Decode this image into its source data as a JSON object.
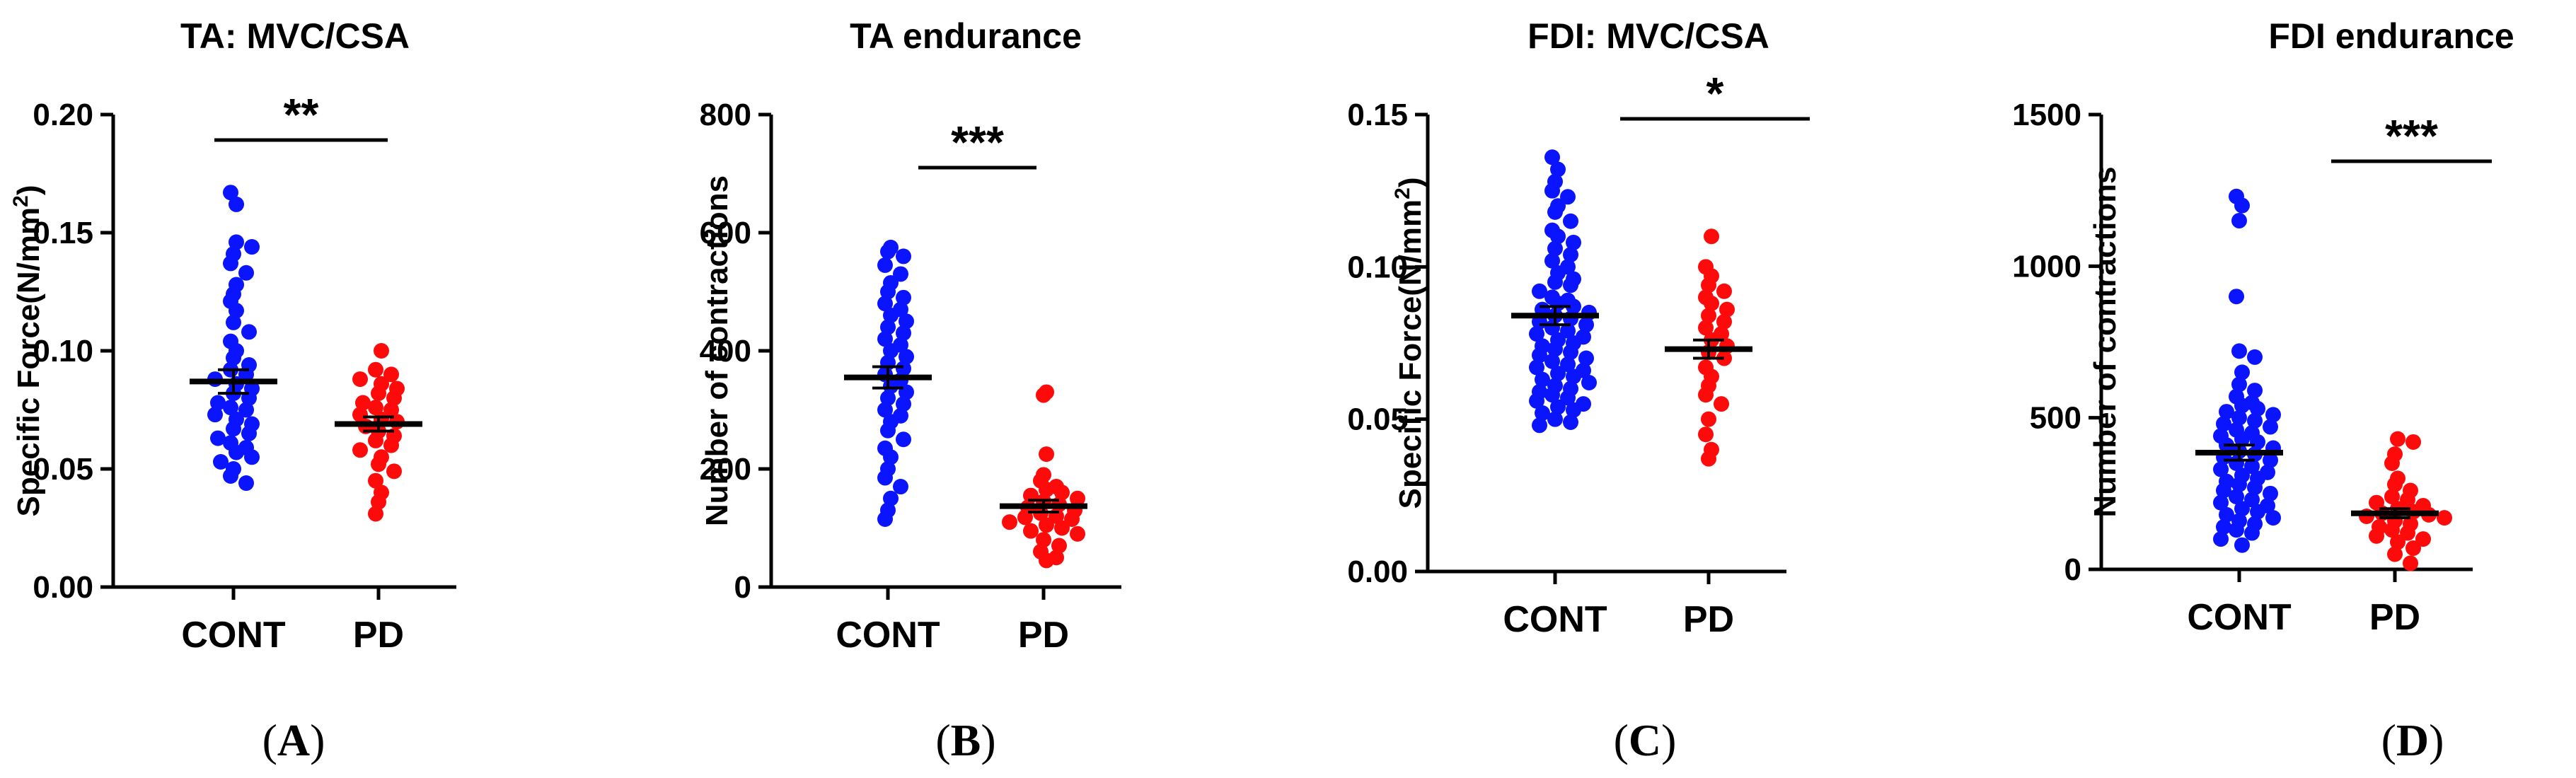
{
  "colors": {
    "control": "#0a14ff",
    "pd": "#ff0a0a",
    "axis": "#000000"
  },
  "chart_data": [
    {
      "type": "scatter",
      "panel": "A",
      "title": "TA: MVC/CSA",
      "ylabel": "Specific Force(N/mm",
      "ylabel_sup": "2",
      "ylabel_close": ")",
      "ylim": [
        0,
        0.2
      ],
      "yticks": [
        0,
        0.05,
        0.1,
        0.15,
        0.2
      ],
      "ytick_labels": [
        "0.00",
        "0.05",
        "0.10",
        "0.15",
        "0.20"
      ],
      "categories": [
        "CONT",
        "PD"
      ],
      "significance": "**",
      "series": [
        {
          "name": "CONT",
          "mean": 0.087,
          "sem": 0.005,
          "values": [
            0.167,
            0.162,
            0.146,
            0.144,
            0.141,
            0.137,
            0.133,
            0.128,
            0.124,
            0.121,
            0.117,
            0.112,
            0.108,
            0.104,
            0.1,
            0.097,
            0.094,
            0.092,
            0.09,
            0.088,
            0.086,
            0.084,
            0.082,
            0.08,
            0.078,
            0.076,
            0.075,
            0.073,
            0.071,
            0.069,
            0.067,
            0.065,
            0.063,
            0.061,
            0.059,
            0.057,
            0.055,
            0.053,
            0.05,
            0.047,
            0.044
          ]
        },
        {
          "name": "PD",
          "mean": 0.069,
          "sem": 0.003,
          "values": [
            0.1,
            0.092,
            0.09,
            0.088,
            0.086,
            0.084,
            0.082,
            0.08,
            0.078,
            0.076,
            0.075,
            0.073,
            0.071,
            0.07,
            0.068,
            0.066,
            0.064,
            0.062,
            0.06,
            0.058,
            0.055,
            0.052,
            0.049,
            0.045,
            0.04,
            0.036,
            0.031
          ]
        }
      ]
    },
    {
      "type": "scatter",
      "panel": "B",
      "title": "TA endurance",
      "ylabel": "Number of contractions",
      "ylabel_sup": "",
      "ylabel_close": "",
      "ylim": [
        0,
        800
      ],
      "yticks": [
        0,
        200,
        400,
        600,
        800
      ],
      "ytick_labels": [
        "0",
        "200",
        "400",
        "600",
        "800"
      ],
      "categories": [
        "CONT",
        "PD"
      ],
      "significance": "***",
      "series": [
        {
          "name": "CONT",
          "mean": 355,
          "sem": 18,
          "values": [
            575,
            568,
            560,
            545,
            530,
            515,
            500,
            490,
            480,
            470,
            460,
            450,
            440,
            430,
            420,
            410,
            400,
            390,
            380,
            370,
            360,
            350,
            340,
            330,
            320,
            310,
            300,
            290,
            280,
            265,
            250,
            235,
            220,
            200,
            185,
            170,
            150,
            130,
            115
          ]
        },
        {
          "name": "PD",
          "mean": 137,
          "sem": 10,
          "values": [
            330,
            325,
            225,
            190,
            180,
            170,
            165,
            160,
            155,
            150,
            145,
            140,
            135,
            130,
            125,
            120,
            118,
            115,
            110,
            105,
            100,
            95,
            90,
            80,
            70,
            60,
            50,
            45
          ]
        }
      ]
    },
    {
      "type": "scatter",
      "panel": "C",
      "title": "FDI: MVC/CSA",
      "ylabel": "Specific Force(N/mm",
      "ylabel_sup": "2",
      "ylabel_close": ")",
      "ylim": [
        0,
        0.15
      ],
      "yticks": [
        0,
        0.05,
        0.1,
        0.15
      ],
      "ytick_labels": [
        "0.00",
        "0.05",
        "0.10",
        "0.15"
      ],
      "categories": [
        "CONT",
        "PD"
      ],
      "significance": "*",
      "series": [
        {
          "name": "CONT",
          "mean": 0.084,
          "sem": 0.003,
          "values": [
            0.136,
            0.132,
            0.128,
            0.125,
            0.123,
            0.12,
            0.118,
            0.115,
            0.112,
            0.11,
            0.108,
            0.106,
            0.104,
            0.102,
            0.1,
            0.098,
            0.096,
            0.095,
            0.094,
            0.092,
            0.09,
            0.089,
            0.088,
            0.087,
            0.086,
            0.085,
            0.084,
            0.083,
            0.082,
            0.081,
            0.08,
            0.079,
            0.078,
            0.077,
            0.076,
            0.075,
            0.074,
            0.073,
            0.072,
            0.071,
            0.07,
            0.069,
            0.068,
            0.067,
            0.066,
            0.065,
            0.064,
            0.063,
            0.062,
            0.061,
            0.06,
            0.059,
            0.058,
            0.057,
            0.056,
            0.055,
            0.054,
            0.053,
            0.052,
            0.05,
            0.049,
            0.048
          ]
        },
        {
          "name": "PD",
          "mean": 0.073,
          "sem": 0.003,
          "values": [
            0.11,
            0.1,
            0.097,
            0.094,
            0.092,
            0.09,
            0.088,
            0.086,
            0.084,
            0.082,
            0.08,
            0.078,
            0.076,
            0.074,
            0.072,
            0.07,
            0.067,
            0.064,
            0.061,
            0.058,
            0.055,
            0.05,
            0.045,
            0.04,
            0.037
          ]
        }
      ]
    },
    {
      "type": "scatter",
      "panel": "D",
      "title": "FDI endurance",
      "ylabel": "Number of  contractions",
      "ylabel_sup": "",
      "ylabel_close": "",
      "ylim": [
        0,
        1500
      ],
      "yticks": [
        0,
        500,
        1000,
        1500
      ],
      "ytick_labels": [
        "0",
        "500",
        "1000",
        "1500"
      ],
      "categories": [
        "CONT",
        "PD"
      ],
      "significance": "***",
      "series": [
        {
          "name": "CONT",
          "mean": 385,
          "sem": 25,
          "values": [
            1230,
            1200,
            1150,
            900,
            720,
            700,
            650,
            610,
            590,
            570,
            550,
            540,
            530,
            520,
            510,
            500,
            490,
            480,
            470,
            460,
            450,
            440,
            430,
            420,
            410,
            400,
            390,
            380,
            370,
            360,
            350,
            340,
            330,
            320,
            310,
            300,
            290,
            280,
            270,
            260,
            250,
            240,
            230,
            220,
            210,
            200,
            190,
            180,
            170,
            160,
            150,
            140,
            130,
            120,
            100,
            80
          ]
        },
        {
          "name": "PD",
          "mean": 185,
          "sem": 15,
          "values": [
            430,
            420,
            380,
            350,
            300,
            280,
            260,
            240,
            230,
            220,
            210,
            200,
            190,
            185,
            180,
            175,
            170,
            160,
            150,
            140,
            130,
            120,
            110,
            100,
            90,
            70,
            50,
            20
          ]
        }
      ]
    }
  ]
}
